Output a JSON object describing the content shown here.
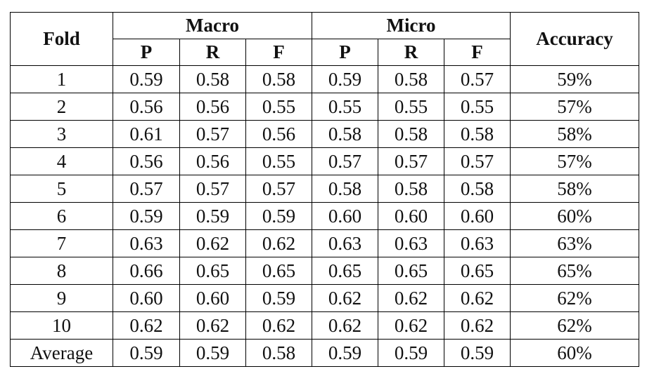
{
  "table": {
    "header": {
      "fold": "Fold",
      "macro": "Macro",
      "micro": "Micro",
      "accuracy": "Accuracy",
      "macro_cols": [
        "P",
        "R",
        "F"
      ],
      "micro_cols": [
        "P",
        "R",
        "F"
      ]
    },
    "rows": [
      [
        "1",
        "0.59",
        "0.58",
        "0.58",
        "0.59",
        "0.58",
        "0.57",
        "59%"
      ],
      [
        "2",
        "0.56",
        "0.56",
        "0.55",
        "0.55",
        "0.55",
        "0.55",
        "57%"
      ],
      [
        "3",
        "0.61",
        "0.57",
        "0.56",
        "0.58",
        "0.58",
        "0.58",
        "58%"
      ],
      [
        "4",
        "0.56",
        "0.56",
        "0.55",
        "0.57",
        "0.57",
        "0.57",
        "57%"
      ],
      [
        "5",
        "0.57",
        "0.57",
        "0.57",
        "0.58",
        "0.58",
        "0.58",
        "58%"
      ],
      [
        "6",
        "0.59",
        "0.59",
        "0.59",
        "0.60",
        "0.60",
        "0.60",
        "60%"
      ],
      [
        "7",
        "0.63",
        "0.62",
        "0.62",
        "0.63",
        "0.63",
        "0.63",
        "63%"
      ],
      [
        "8",
        "0.66",
        "0.65",
        "0.65",
        "0.65",
        "0.65",
        "0.65",
        "65%"
      ],
      [
        "9",
        "0.60",
        "0.60",
        "0.59",
        "0.62",
        "0.62",
        "0.62",
        "62%"
      ],
      [
        "10",
        "0.62",
        "0.62",
        "0.62",
        "0.62",
        "0.62",
        "0.62",
        "62%"
      ],
      [
        "Average",
        "0.59",
        "0.59",
        "0.58",
        "0.59",
        "0.59",
        "0.59",
        "60%"
      ]
    ]
  }
}
